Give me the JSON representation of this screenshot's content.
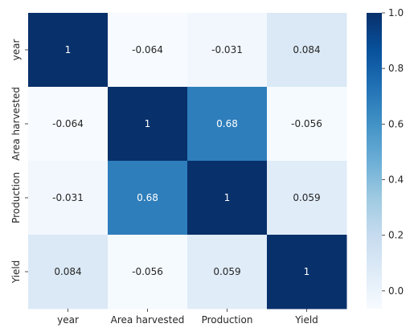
{
  "chart_data": {
    "type": "heatmap",
    "title": "",
    "xlabel": "",
    "ylabel": "",
    "x_categories": [
      "year",
      "Area harvested",
      "Production",
      "Yield"
    ],
    "y_categories": [
      "year",
      "Area harvested",
      "Production",
      "Yield"
    ],
    "values": [
      [
        1,
        -0.064,
        -0.031,
        0.084
      ],
      [
        -0.064,
        1,
        0.68,
        -0.056
      ],
      [
        -0.031,
        0.68,
        1,
        0.059
      ],
      [
        0.084,
        -0.056,
        0.059,
        1
      ]
    ],
    "annotations": [
      [
        "1",
        "-0.064",
        "-0.031",
        "0.084"
      ],
      [
        "-0.064",
        "1",
        "0.68",
        "-0.056"
      ],
      [
        "-0.031",
        "0.68",
        "1",
        "0.059"
      ],
      [
        "0.084",
        "-0.056",
        "0.059",
        "1"
      ]
    ],
    "colormap": "Blues",
    "color_range": [
      -0.064,
      1.0
    ],
    "colorbar_ticks": [
      "1.0",
      "0.8",
      "0.6",
      "0.4",
      "0.2",
      "0.0"
    ],
    "colorbar_tick_values": [
      1.0,
      0.8,
      0.6,
      0.4,
      0.2,
      0.0
    ],
    "grid": false,
    "legend": "colorbar-right"
  }
}
